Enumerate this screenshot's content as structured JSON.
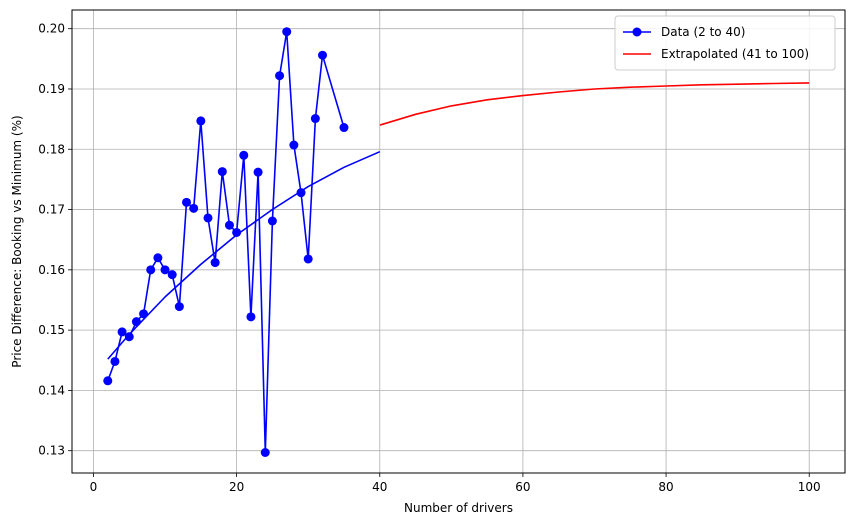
{
  "chart_data": {
    "type": "line",
    "title": "",
    "xlabel": "Number of drivers",
    "ylabel": "Price Difference: Booking vs Minimum (%)",
    "xlim": [
      -3,
      105
    ],
    "ylim": [
      0.1263,
      0.2031
    ],
    "xticks": [
      0,
      20,
      40,
      60,
      80,
      100
    ],
    "yticks": [
      0.13,
      0.14,
      0.15,
      0.16,
      0.17,
      0.18,
      0.19,
      0.2
    ],
    "grid": true,
    "legend_position": "top-right",
    "series": [
      {
        "name": "Data (2 to 40)",
        "color": "#0000ff",
        "marker": "circle",
        "x": [
          2,
          3,
          4,
          5,
          6,
          7,
          8,
          9,
          10,
          11,
          12,
          13,
          14,
          15,
          16,
          17,
          18,
          19,
          20,
          21,
          22,
          23,
          24,
          25,
          26,
          27,
          28,
          29,
          30,
          31,
          32,
          35
        ],
        "y": [
          0.1416,
          0.1448,
          0.1497,
          0.1489,
          0.1514,
          0.1527,
          0.16,
          0.162,
          0.16,
          0.1592,
          0.1539,
          0.1712,
          0.1702,
          0.1847,
          0.1686,
          0.1612,
          0.1763,
          0.1674,
          0.1662,
          0.179,
          0.1522,
          0.1762,
          0.1297,
          0.1681,
          0.1922,
          0.1995,
          0.1807,
          0.1728,
          0.1618,
          0.1851,
          0.1956,
          0.1836
        ]
      },
      {
        "name": "",
        "color": "#0000ff",
        "marker": "none",
        "x": [
          2,
          5,
          10,
          15,
          20,
          25,
          30,
          35,
          40
        ],
        "y": [
          0.1452,
          0.1493,
          0.1555,
          0.1609,
          0.1658,
          0.17,
          0.1738,
          0.177,
          0.1796
        ]
      },
      {
        "name": "Extrapolated (41 to 100)",
        "color": "#ff0000",
        "marker": "none",
        "x": [
          40,
          45,
          50,
          55,
          60,
          65,
          70,
          75,
          80,
          85,
          90,
          95,
          100
        ],
        "y": [
          0.184,
          0.1858,
          0.1872,
          0.1882,
          0.1889,
          0.1895,
          0.19,
          0.1903,
          0.1905,
          0.1907,
          0.1908,
          0.1909,
          0.191
        ]
      }
    ]
  }
}
